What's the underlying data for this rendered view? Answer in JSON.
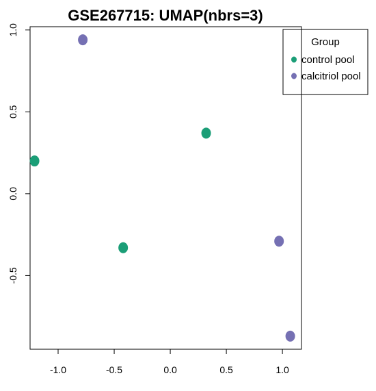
{
  "chart_data": {
    "type": "scatter",
    "title": "GSE267715: UMAP(nbrs=3)",
    "xlabel": "",
    "ylabel": "",
    "xlim": [
      -1.25,
      1.17
    ],
    "ylim": [
      -0.95,
      1.02
    ],
    "x_ticks": [
      {
        "value": -1.0,
        "label": "-1.0"
      },
      {
        "value": -0.5,
        "label": "-0.5"
      },
      {
        "value": 0.0,
        "label": "0.0"
      },
      {
        "value": 0.5,
        "label": "0.5"
      },
      {
        "value": 1.0,
        "label": "1.0"
      }
    ],
    "y_ticks": [
      {
        "value": -0.5,
        "label": "-0.5"
      },
      {
        "value": 0.0,
        "label": "0.0"
      },
      {
        "value": 0.5,
        "label": "0.5"
      },
      {
        "value": 1.0,
        "label": "1.0"
      }
    ],
    "grid": false,
    "legend": {
      "title": "Group",
      "placement": "top-right, outside plot"
    },
    "series": [
      {
        "name": "control pool",
        "color": "#1b9e77",
        "points": [
          {
            "x": -1.21,
            "y": 0.2
          },
          {
            "x": 0.32,
            "y": 0.37
          },
          {
            "x": -0.42,
            "y": -0.33
          }
        ]
      },
      {
        "name": "calcitriol pool",
        "color": "#7570b3",
        "points": [
          {
            "x": -0.78,
            "y": 0.94
          },
          {
            "x": 0.97,
            "y": -0.29
          },
          {
            "x": 1.07,
            "y": -0.87
          }
        ]
      }
    ]
  }
}
